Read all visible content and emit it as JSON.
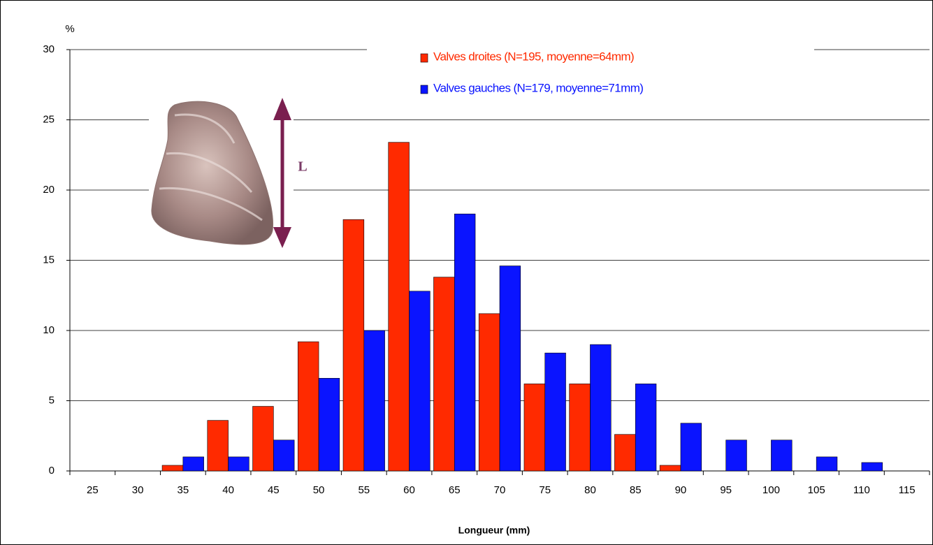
{
  "chart_data": {
    "type": "bar",
    "y_label": "%",
    "x_label": "Longueur (mm)",
    "annotation": "L",
    "categories": [
      "25",
      "30",
      "35",
      "40",
      "45",
      "50",
      "55",
      "60",
      "65",
      "70",
      "75",
      "80",
      "85",
      "90",
      "95",
      "100",
      "105",
      "110",
      "115"
    ],
    "series": [
      {
        "name": "Valves droites (N=195, moyenne=64mm)",
        "color": "#ff2a00",
        "values": [
          0,
          0,
          0.4,
          3.6,
          4.6,
          9.2,
          17.9,
          23.4,
          13.8,
          11.2,
          6.2,
          6.2,
          2.6,
          0.4,
          0,
          0,
          0,
          0,
          0
        ]
      },
      {
        "name": "Valves gauches (N=179, moyenne=71mm)",
        "color": "#0a14ff",
        "values": [
          0,
          0,
          1,
          1,
          2.2,
          6.6,
          10,
          12.8,
          18.3,
          14.6,
          8.4,
          9,
          6.2,
          3.4,
          2.2,
          2.2,
          1,
          0.6,
          0
        ]
      }
    ],
    "ylim": [
      0,
      30
    ],
    "yticks": [
      0,
      5,
      10,
      15,
      20,
      25,
      30
    ],
    "grid": true
  }
}
